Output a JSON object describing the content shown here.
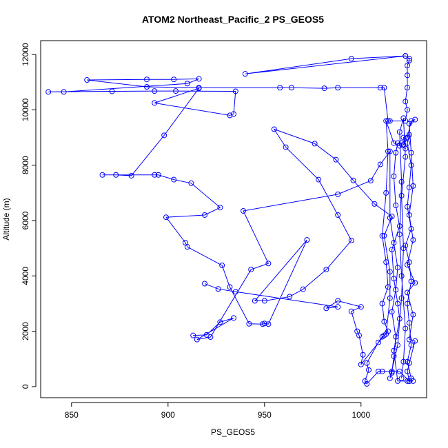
{
  "chart_data": {
    "type": "scatter",
    "title": "ATOM2 Northeast_Pacific_2 PS_GEOS5",
    "xlabel": "PS_GEOS5",
    "ylabel": "Altitude (m)",
    "xlim": [
      834,
      1034
    ],
    "ylim": [
      -400,
      12500
    ],
    "x_ticks": [
      850,
      900,
      950,
      1000
    ],
    "y_ticks": [
      0,
      2000,
      4000,
      6000,
      8000,
      10000,
      12000
    ],
    "grid": false,
    "legend": "none",
    "series": [
      {
        "color": "#0000ff",
        "marker": "open-circle",
        "line": true,
        "points": [
          [
            1023,
            11950
          ],
          [
            940,
            11300
          ],
          [
            995,
            11850
          ],
          [
            1023,
            11950
          ],
          [
            1025,
            11850
          ],
          [
            1025,
            11780
          ],
          [
            1024,
            11600
          ],
          [
            1024,
            11250
          ],
          [
            1024,
            10800
          ],
          [
            1023,
            10300
          ],
          [
            1024,
            10000
          ],
          [
            1023,
            9600
          ],
          [
            1015,
            9600
          ],
          [
            1014,
            9600
          ],
          [
            1012,
            10800
          ],
          [
            1010,
            10800
          ],
          [
            988,
            10800
          ],
          [
            981,
            10780
          ],
          [
            964,
            10800
          ],
          [
            958,
            10800
          ],
          [
            916,
            10800
          ],
          [
            889,
            10830
          ],
          [
            858,
            11080
          ],
          [
            889,
            11100
          ],
          [
            903,
            11100
          ],
          [
            916,
            11120
          ],
          [
            910,
            10950
          ],
          [
            846,
            10650
          ],
          [
            838,
            10650
          ],
          [
            871,
            10670
          ],
          [
            893,
            10680
          ],
          [
            904,
            10680
          ],
          [
            935,
            10670
          ],
          [
            934,
            9850
          ],
          [
            932,
            9800
          ],
          [
            893,
            10250
          ],
          [
            916,
            10780
          ],
          [
            898,
            9080
          ],
          [
            881,
            7620
          ],
          [
            873,
            7650
          ],
          [
            866,
            7650
          ],
          [
            893,
            7650
          ],
          [
            895,
            7650
          ],
          [
            903,
            7480
          ],
          [
            912,
            7350
          ],
          [
            927,
            6470
          ],
          [
            919,
            6200
          ],
          [
            899,
            6120
          ],
          [
            909,
            5200
          ],
          [
            910,
            5050
          ],
          [
            928,
            4380
          ],
          [
            932,
            3600
          ],
          [
            942,
            2270
          ],
          [
            949,
            2260
          ],
          [
            950,
            2280
          ],
          [
            952,
            2260
          ],
          [
            972,
            5300
          ],
          [
            945,
            3100
          ],
          [
            950,
            3100
          ],
          [
            963,
            3250
          ],
          [
            970,
            3520
          ],
          [
            982,
            4230
          ],
          [
            995,
            5280
          ],
          [
            988,
            6200
          ],
          [
            978,
            7480
          ],
          [
            961,
            8650
          ],
          [
            955,
            9300
          ],
          [
            976,
            8780
          ],
          [
            987,
            8200
          ],
          [
            996,
            7450
          ],
          [
            1007,
            6600
          ],
          [
            1016,
            6150
          ],
          [
            1012,
            5450
          ],
          [
            1015,
            4150
          ],
          [
            1015,
            3200
          ],
          [
            1013,
            1900
          ],
          [
            1011,
            1800
          ],
          [
            1009,
            1600
          ],
          [
            1003,
            850
          ],
          [
            1004,
            600
          ],
          [
            1002,
            200
          ],
          [
            1003,
            100
          ],
          [
            1009,
            550
          ],
          [
            1011,
            550
          ],
          [
            1016,
            550
          ],
          [
            1020,
            550
          ],
          [
            1025,
            200
          ],
          [
            1027,
            200
          ],
          [
            1019,
            200
          ],
          [
            1017,
            1300
          ],
          [
            1020,
            2450
          ],
          [
            1019,
            3000
          ],
          [
            1017,
            3900
          ],
          [
            1016,
            4950
          ],
          [
            1020,
            5800
          ],
          [
            1018,
            6550
          ],
          [
            1017,
            7600
          ],
          [
            1018,
            8450
          ],
          [
            1019,
            8800
          ],
          [
            1021,
            8800
          ],
          [
            1022,
            8750
          ],
          [
            1024,
            9000
          ],
          [
            1026,
            9600
          ],
          [
            1028,
            9650
          ],
          [
            1025,
            9500
          ],
          [
            1026,
            8450
          ],
          [
            1027,
            7250
          ],
          [
            1025,
            6200
          ],
          [
            1027,
            5300
          ],
          [
            1024,
            4400
          ],
          [
            1028,
            3750
          ],
          [
            1024,
            3400
          ],
          [
            1027,
            2600
          ],
          [
            1025,
            1700
          ],
          [
            1028,
            1650
          ],
          [
            1025,
            850
          ],
          [
            1024,
            550
          ],
          [
            1025,
            200
          ]
        ]
      },
      {
        "color": "#0000ff",
        "marker": "open-circle",
        "line": true,
        "points": [
          [
            919,
            3720
          ],
          [
            926,
            3530
          ],
          [
            935,
            3430
          ],
          [
            988,
            2880
          ],
          [
            982,
            2830
          ],
          [
            988,
            3100
          ],
          [
            1000,
            2880
          ],
          [
            995,
            2720
          ],
          [
            998,
            2000
          ],
          [
            999,
            1850
          ],
          [
            1001,
            1150
          ],
          [
            1000,
            800
          ],
          [
            1012,
            1850
          ],
          [
            1014,
            2000
          ],
          [
            1012,
            2350
          ],
          [
            1011,
            3000
          ],
          [
            1014,
            3600
          ],
          [
            1013,
            4500
          ],
          [
            1011,
            5450
          ],
          [
            1013,
            7000
          ],
          [
            1014,
            8500
          ],
          [
            1013,
            9600
          ],
          [
            1017,
            8800
          ],
          [
            1020,
            8700
          ],
          [
            1023,
            8600
          ],
          [
            1022,
            9000
          ],
          [
            1025,
            9100
          ],
          [
            1024,
            8800
          ],
          [
            1026,
            8000
          ],
          [
            1025,
            7200
          ],
          [
            1024,
            6500
          ],
          [
            1026,
            5700
          ],
          [
            1023,
            5100
          ],
          [
            1025,
            4500
          ],
          [
            1026,
            3800
          ],
          [
            1024,
            3000
          ],
          [
            1025,
            2300
          ],
          [
            1026,
            1500
          ],
          [
            1024,
            900
          ],
          [
            1026,
            300
          ],
          [
            1024,
            200
          ]
        ]
      },
      {
        "color": "#0000ff",
        "marker": "open-circle",
        "line": true,
        "points": [
          [
            913,
            1850
          ],
          [
            920,
            1870
          ],
          [
            927,
            2330
          ],
          [
            934,
            2480
          ],
          [
            915,
            1700
          ],
          [
            922,
            1790
          ],
          [
            943,
            4230
          ],
          [
            952,
            4450
          ],
          [
            939,
            6350
          ],
          [
            988,
            6950
          ],
          [
            1005,
            7440
          ],
          [
            1010,
            8030
          ],
          [
            1015,
            8500
          ],
          [
            1015,
            6100
          ],
          [
            1017,
            5200
          ],
          [
            1019,
            4300
          ],
          [
            1018,
            3500
          ],
          [
            1016,
            2700
          ],
          [
            1018,
            1800
          ],
          [
            1017,
            1100
          ],
          [
            1016,
            500
          ],
          [
            1015,
            300
          ],
          [
            1019,
            1500
          ],
          [
            1021,
            3200
          ],
          [
            1022,
            5000
          ],
          [
            1021,
            6900
          ],
          [
            1023,
            8300
          ],
          [
            1022,
            9700
          ],
          [
            1020,
            9200
          ],
          [
            1021,
            7400
          ],
          [
            1020,
            5500
          ],
          [
            1021,
            4000
          ],
          [
            1023,
            2100
          ],
          [
            1022,
            900
          ],
          [
            1021,
            300
          ]
        ]
      }
    ]
  }
}
